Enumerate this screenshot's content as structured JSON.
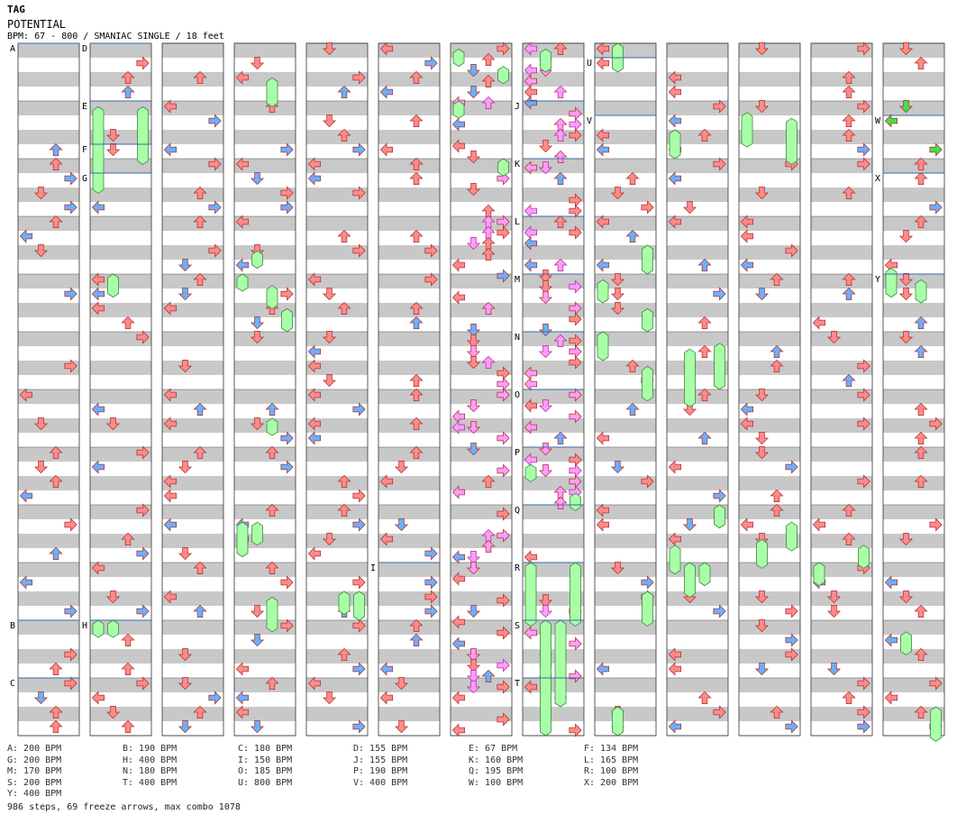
{
  "header": {
    "artist": "TAG",
    "title": "POTENTIAL",
    "meta": "BPM: 67 - 800 / SMANIAC SINGLE / 18 feet"
  },
  "colors": {
    "quarter_note": "#ff8a8a",
    "eighth_note": "#6ab0ff",
    "sixteenth_note": "#ff9cff",
    "freeze": "#a8ffa8",
    "shock_like": "#44e044",
    "band": "#c8c8c8",
    "marker_line": "#3a6aa8"
  },
  "section_markers": [
    {
      "label": "A",
      "column": 0,
      "measure": 0
    },
    {
      "label": "B",
      "column": 0,
      "measure": 10
    },
    {
      "label": "C",
      "column": 0,
      "measure": 11
    },
    {
      "label": "D",
      "column": 1,
      "measure": 0
    },
    {
      "label": "E",
      "column": 1,
      "measure": 1
    },
    {
      "label": "F",
      "column": 1,
      "measure": 1.75
    },
    {
      "label": "G",
      "column": 1,
      "measure": 2.25
    },
    {
      "label": "H",
      "column": 1,
      "measure": 10
    },
    {
      "label": "I",
      "column": 5,
      "measure": 9
    },
    {
      "label": "J",
      "column": 7,
      "measure": 1
    },
    {
      "label": "K",
      "column": 7,
      "measure": 2
    },
    {
      "label": "L",
      "column": 7,
      "measure": 3
    },
    {
      "label": "M",
      "column": 7,
      "measure": 4
    },
    {
      "label": "N",
      "column": 7,
      "measure": 5
    },
    {
      "label": "O",
      "column": 7,
      "measure": 6
    },
    {
      "label": "P",
      "column": 7,
      "measure": 7
    },
    {
      "label": "Q",
      "column": 7,
      "measure": 8
    },
    {
      "label": "R",
      "column": 7,
      "measure": 9
    },
    {
      "label": "S",
      "column": 7,
      "measure": 10
    },
    {
      "label": "T",
      "column": 7,
      "measure": 11
    },
    {
      "label": "U",
      "column": 8,
      "measure": 0.25
    },
    {
      "label": "V",
      "column": 8,
      "measure": 1.25
    },
    {
      "label": "W",
      "column": 12,
      "measure": 1.25
    },
    {
      "label": "X",
      "column": 12,
      "measure": 2.25
    },
    {
      "label": "Y",
      "column": 12,
      "measure": 4
    }
  ],
  "legend": [
    "A: 200 BPM",
    "B: 190 BPM",
    "C: 180 BPM",
    "D: 155 BPM",
    "E: 67 BPM",
    "F: 134 BPM",
    "G: 200 BPM",
    "H: 400 BPM",
    "I: 150 BPM",
    "J: 155 BPM",
    "K: 160 BPM",
    "L: 165 BPM",
    "M: 170 BPM",
    "N: 180 BPM",
    "O: 185 BPM",
    "P: 190 BPM",
    "Q: 195 BPM",
    "R: 100 BPM",
    "S: 200 BPM",
    "T: 400 BPM",
    "U: 800 BPM",
    "V: 400 BPM",
    "W: 100 BPM",
    "X: 200 BPM",
    "Y: 400 BPM"
  ],
  "summary": "986 steps, 69 freeze arrows, max combo 1078"
}
